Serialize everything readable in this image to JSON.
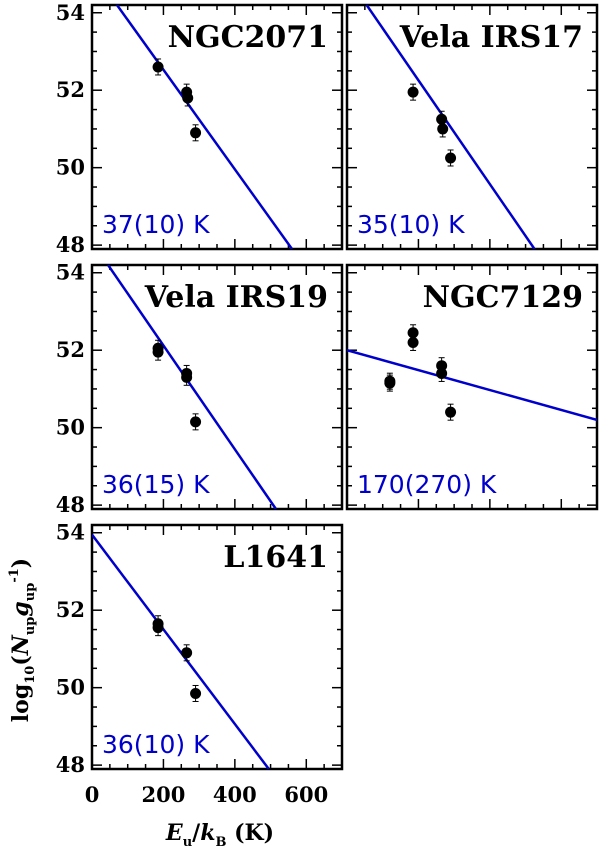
{
  "figure": {
    "xlabel": "E_u/k_B (K)",
    "xlabel_parts": {
      "e": "E",
      "e_sub": "u",
      "slash": "/",
      "k": "k",
      "k_sub": "B",
      "unit": " (K)"
    },
    "ylabel": "log10(N_up g_up^-1)",
    "ylabel_parts": {
      "log": "log",
      "log_sub": "10",
      "open": "(",
      "n": "N",
      "n_sub": "up",
      "g": "g",
      "g_sub": "up",
      "g_sup": "-1",
      "close": ")"
    },
    "x_ticks": [
      "0",
      "200",
      "400",
      "600"
    ],
    "y_ticks": [
      "48",
      "50",
      "52",
      "54"
    ]
  },
  "chart_data": [
    {
      "type": "scatter",
      "title": "NGC2071",
      "annotation": "37(10) K",
      "xlim": [
        0,
        700
      ],
      "ylim": [
        47.9,
        54.2
      ],
      "points": [
        {
          "x": 185,
          "y": 52.6
        },
        {
          "x": 265,
          "y": 51.95
        },
        {
          "x": 268,
          "y": 51.8
        },
        {
          "x": 290,
          "y": 50.9
        }
      ],
      "fit": {
        "x": [
          70,
          560
        ],
        "y": [
          54.2,
          47.9
        ]
      },
      "line_color": "#0000cc"
    },
    {
      "type": "scatter",
      "title": "Vela IRS17",
      "annotation": "35(10) K",
      "xlim": [
        0,
        700
      ],
      "ylim": [
        47.9,
        54.2
      ],
      "points": [
        {
          "x": 185,
          "y": 51.95
        },
        {
          "x": 265,
          "y": 51.25
        },
        {
          "x": 268,
          "y": 51.0
        },
        {
          "x": 290,
          "y": 50.25
        }
      ],
      "fit": {
        "x": [
          55,
          525
        ],
        "y": [
          54.2,
          47.9
        ]
      },
      "line_color": "#0000cc"
    },
    {
      "type": "scatter",
      "title": "Vela IRS19",
      "annotation": "36(15) K",
      "xlim": [
        0,
        700
      ],
      "ylim": [
        47.9,
        54.2
      ],
      "points": [
        {
          "x": 185,
          "y": 52.05
        },
        {
          "x": 185,
          "y": 51.95
        },
        {
          "x": 265,
          "y": 51.4
        },
        {
          "x": 265,
          "y": 51.3
        },
        {
          "x": 290,
          "y": 50.15
        }
      ],
      "fit": {
        "x": [
          45,
          515
        ],
        "y": [
          54.2,
          47.9
        ]
      },
      "line_color": "#0000cc"
    },
    {
      "type": "scatter",
      "title": "NGC7129",
      "annotation": "170(270) K",
      "xlim": [
        0,
        700
      ],
      "ylim": [
        47.9,
        54.2
      ],
      "points": [
        {
          "x": 120,
          "y": 51.2
        },
        {
          "x": 120,
          "y": 51.15
        },
        {
          "x": 185,
          "y": 52.45
        },
        {
          "x": 185,
          "y": 52.2
        },
        {
          "x": 265,
          "y": 51.6
        },
        {
          "x": 265,
          "y": 51.4
        },
        {
          "x": 290,
          "y": 50.4
        }
      ],
      "fit": {
        "x": [
          0,
          700
        ],
        "y": [
          52.0,
          50.2
        ]
      },
      "line_color": "#0000cc"
    },
    {
      "type": "scatter",
      "title": "L1641",
      "annotation": "36(10) K",
      "xlim": [
        0,
        700
      ],
      "ylim": [
        47.9,
        54.2
      ],
      "points": [
        {
          "x": 185,
          "y": 51.65
        },
        {
          "x": 185,
          "y": 51.55
        },
        {
          "x": 265,
          "y": 50.9
        },
        {
          "x": 290,
          "y": 49.85
        }
      ],
      "fit": {
        "x": [
          0,
          495
        ],
        "y": [
          53.95,
          47.9
        ]
      },
      "line_color": "#0000cc"
    }
  ]
}
